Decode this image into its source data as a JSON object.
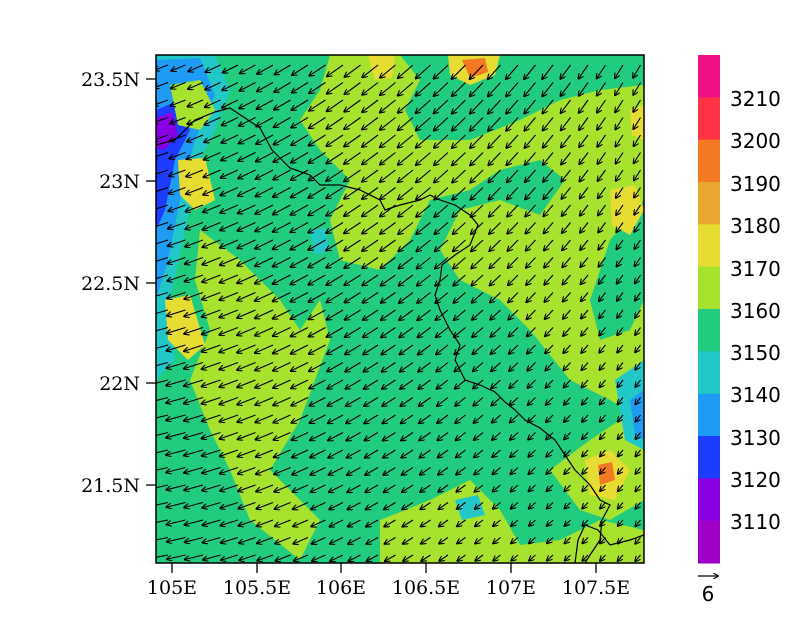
{
  "map": {
    "lat_ticks": [
      "23.5N",
      "23N",
      "22.5N",
      "22N",
      "21.5N"
    ],
    "lon_ticks": [
      "105E",
      "105.5E",
      "106E",
      "106.5E",
      "107E",
      "107.5E"
    ],
    "lat_values": [
      23.5,
      23.0,
      22.5,
      22.0,
      21.5
    ],
    "lon_values": [
      105.0,
      105.5,
      106.0,
      106.5,
      107.0,
      107.5
    ],
    "extent": {
      "lon_min": 104.95,
      "lon_max": 107.82,
      "lat_min": 21.1,
      "lat_max": 23.63
    },
    "field_description": "filled contours with wind vectors, prevailing flow from northeast",
    "background_color": "#22cc7f"
  },
  "colorbar": {
    "levels": [
      "3210",
      "3200",
      "3190",
      "3180",
      "3170",
      "3160",
      "3150",
      "3140",
      "3130",
      "3120",
      "3110"
    ],
    "colors_top_to_bottom": [
      "#ee1188",
      "#ff3344",
      "#f37a22",
      "#e8a830",
      "#e6dc32",
      "#a6e22e",
      "#22cc7f",
      "#22c8c8",
      "#1e9bf5",
      "#1e3cff",
      "#8a00e6",
      "#a000c8"
    ]
  },
  "reference_vector": {
    "label": "6"
  }
}
